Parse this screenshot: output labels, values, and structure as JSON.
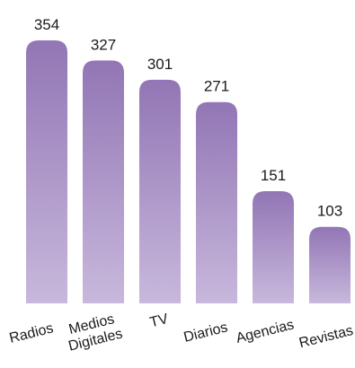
{
  "chart_data": {
    "type": "bar",
    "categories": [
      "Radios",
      "Medios Digitales",
      "TV",
      "Diarios",
      "Agencias",
      "Revistas"
    ],
    "category_lines": [
      [
        "Radios"
      ],
      [
        "Medios",
        "Digitales"
      ],
      [
        "TV"
      ],
      [
        "Diarios"
      ],
      [
        "Agencias"
      ],
      [
        "Revistas"
      ]
    ],
    "values": [
      354,
      327,
      301,
      271,
      151,
      103
    ],
    "value_labels": [
      "354",
      "327",
      "301",
      "271",
      "151",
      "103"
    ],
    "title": "",
    "xlabel": "",
    "ylabel": "",
    "ylim": [
      0,
      354
    ],
    "grid": false,
    "legend": "none",
    "bar_gradient": {
      "top": "#9276b5",
      "bottom": "#c8b8dc"
    }
  }
}
